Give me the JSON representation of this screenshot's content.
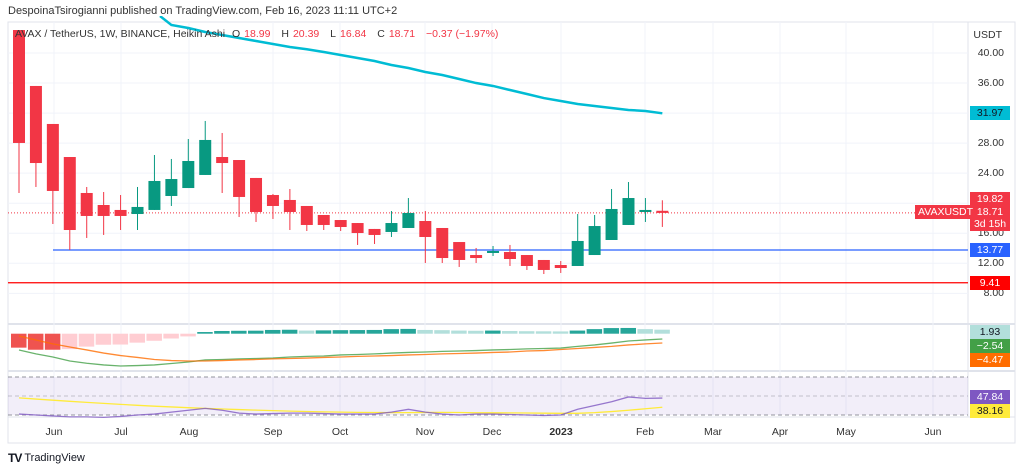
{
  "header": {
    "publish_line": "DespoinaTsirogianni published on TradingView.com, Feb 16, 2023 11:11 UTC+2"
  },
  "legend": {
    "symbol": "AVAX / TetherUS, 1W, BINANCE, Heikin Ashi",
    "open_label": "O",
    "open": "18.99",
    "high_label": "H",
    "high": "20.39",
    "low_label": "L",
    "low": "16.84",
    "close_label": "C",
    "close": "18.71",
    "change": "−0.37 (−1.97%)"
  },
  "price_axis": {
    "unit": "USDT",
    "ticks": [
      "40.00",
      "36.00",
      "28.00",
      "24.00",
      "16.00",
      "12.00",
      "8.00"
    ]
  },
  "price_labels": {
    "ma": {
      "text": "31.97",
      "color": "#00bcd4"
    },
    "high": {
      "text": "19.82",
      "color": "#f23645"
    },
    "last": {
      "text": "18.71",
      "countdown": "3d 15h",
      "color": "#f23645"
    },
    "symbol_tag": "AVAXUSDT",
    "support": {
      "text": "13.77",
      "color": "#2962ff"
    },
    "support2": {
      "text": "9.41",
      "color": "#ff0000"
    }
  },
  "macd_labels": {
    "histogram": {
      "text": "1.93",
      "color": "#b2dfdb"
    },
    "macd": {
      "text": "−2.54",
      "color": "#43a047"
    },
    "signal": {
      "text": "−4.47",
      "color": "#ff6d00"
    }
  },
  "rsi_labels": {
    "rsi": {
      "text": "47.84",
      "color": "#7e57c2"
    },
    "rsi_ma": {
      "text": "38.16",
      "color": "#ffeb3b"
    }
  },
  "time_axis": [
    "Jun",
    "Jul",
    "Aug",
    "Sep",
    "Oct",
    "Nov",
    "Dec",
    "2023",
    "Feb",
    "Mar",
    "Apr",
    "May",
    "Jun"
  ],
  "footer": {
    "brand": "TradingView"
  },
  "colors": {
    "up": "#089981",
    "down": "#f23645",
    "ma": "#00bcd4"
  },
  "chart_data": {
    "type": "candlestick",
    "style": "Heikin Ashi",
    "ylim": [
      7,
      44
    ],
    "grid": true,
    "x_tick_labels": [
      "Jun",
      "Jul",
      "Aug",
      "Sep",
      "Oct",
      "Nov",
      "Dec",
      "2023",
      "Feb",
      "Mar",
      "Apr",
      "May",
      "Jun"
    ],
    "candles_ohlc": [
      [
        43.06,
        43.06,
        21.36,
        28.02
      ],
      [
        35.61,
        35.61,
        22.16,
        25.35
      ],
      [
        30.55,
        30.55,
        17.23,
        21.63
      ],
      [
        26.15,
        26.15,
        13.77,
        16.43
      ],
      [
        21.36,
        22.16,
        15.37,
        18.3
      ],
      [
        19.76,
        21.49,
        15.77,
        18.3
      ],
      [
        19.1,
        21.09,
        16.43,
        18.3
      ],
      [
        18.56,
        22.16,
        16.43,
        19.5
      ],
      [
        19.1,
        26.42,
        19.1,
        22.96
      ],
      [
        20.96,
        25.89,
        19.63,
        23.22
      ],
      [
        22.02,
        28.55,
        22.02,
        25.62
      ],
      [
        23.76,
        30.95,
        23.76,
        28.42
      ],
      [
        26.15,
        29.35,
        21.36,
        25.35
      ],
      [
        25.75,
        25.75,
        18.16,
        20.83
      ],
      [
        23.36,
        23.36,
        17.5,
        18.83
      ],
      [
        21.09,
        21.23,
        17.9,
        19.63
      ],
      [
        20.43,
        21.89,
        16.43,
        18.83
      ],
      [
        19.63,
        19.63,
        16.3,
        17.1
      ],
      [
        18.43,
        18.43,
        16.43,
        17.1
      ],
      [
        17.76,
        17.76,
        16.3,
        16.83
      ],
      [
        17.36,
        17.36,
        14.44,
        16.03
      ],
      [
        16.57,
        16.57,
        14.57,
        15.77
      ],
      [
        16.17,
        18.96,
        15.5,
        17.36
      ],
      [
        16.7,
        20.69,
        16.7,
        18.7
      ],
      [
        17.63,
        18.96,
        12.04,
        15.5
      ],
      [
        16.7,
        16.7,
        12.04,
        12.7
      ],
      [
        14.83,
        14.83,
        11.51,
        12.44
      ],
      [
        13.1,
        14.04,
        12.04,
        12.7
      ],
      [
        13.37,
        14.3,
        12.97,
        13.64
      ],
      [
        13.5,
        14.44,
        11.64,
        12.57
      ],
      [
        13.1,
        13.1,
        11.11,
        11.64
      ],
      [
        12.44,
        12.44,
        10.57,
        11.11
      ],
      [
        11.77,
        12.3,
        10.71,
        11.37
      ],
      [
        11.64,
        18.56,
        11.64,
        14.97
      ],
      [
        13.1,
        18.43,
        13.1,
        16.96
      ],
      [
        15.1,
        21.89,
        15.1,
        19.23
      ],
      [
        17.1,
        22.82,
        17.1,
        20.69
      ],
      [
        18.83,
        20.69,
        17.5,
        19.1
      ],
      [
        18.99,
        20.39,
        16.84,
        18.71
      ]
    ],
    "moving_average": [
      null,
      null,
      null,
      null,
      null,
      null,
      null,
      null,
      null,
      43.73,
      43.33,
      42.8,
      42.4,
      42.0,
      41.6,
      41.2,
      40.8,
      40.5,
      40.13,
      39.73,
      39.33,
      38.93,
      38.4,
      38.0,
      37.47,
      37.07,
      36.54,
      36.0,
      35.61,
      35.07,
      34.54,
      34.0,
      33.61,
      33.21,
      32.94,
      32.68,
      32.41,
      32.28,
      31.97
    ],
    "horizontal_levels": [
      13.77,
      9.41
    ],
    "macd": {
      "histogram": [
        -6.7,
        -7.7,
        -7.7,
        -7.4,
        -6.2,
        -5.3,
        -5.2,
        -4.3,
        -3.4,
        -2.3,
        -1.3,
        0.8,
        1.3,
        1.4,
        1.45,
        1.8,
        1.9,
        1.5,
        1.6,
        1.7,
        1.75,
        1.8,
        2.2,
        2.3,
        1.8,
        1.7,
        1.5,
        1.4,
        1.5,
        1.3,
        1.2,
        1.15,
        1.1,
        1.5,
        2.2,
        2.7,
        2.75,
        2.2,
        1.93
      ],
      "macd": [
        -7.8,
        -9.7,
        -11.2,
        -13.1,
        -14.2,
        -15.0,
        -15.5,
        -15.3,
        -15.0,
        -14.3,
        -13.6,
        -12.6,
        -12.4,
        -12.1,
        -11.9,
        -11.7,
        -11.2,
        -10.9,
        -10.7,
        -10.2,
        -10.0,
        -9.7,
        -9.3,
        -9.0,
        -8.8,
        -8.5,
        -8.3,
        -8.1,
        -7.8,
        -7.6,
        -7.3,
        -7.1,
        -6.9,
        -6.1,
        -5.4,
        -4.5,
        -3.5,
        -3.0,
        -2.54
      ],
      "signal": [
        -1.1,
        -3.0,
        -4.9,
        -6.4,
        -7.8,
        -9.3,
        -10.5,
        -11.4,
        -12.4,
        -12.9,
        -13.1,
        -13.1,
        -12.9,
        -12.6,
        -12.4,
        -12.1,
        -11.9,
        -11.7,
        -11.4,
        -11.2,
        -10.9,
        -10.7,
        -10.5,
        -10.2,
        -10.0,
        -9.7,
        -9.5,
        -9.3,
        -9.0,
        -8.8,
        -8.3,
        -8.1,
        -7.6,
        -7.1,
        -6.6,
        -6.1,
        -5.4,
        -4.9,
        -4.47
      ]
    },
    "rsi": {
      "bands": [
        70,
        50,
        30
      ],
      "rsi": [
        31,
        30,
        29,
        28,
        28,
        27.5,
        28.5,
        30,
        31,
        33,
        35,
        37,
        35,
        32,
        31,
        31.5,
        32,
        32,
        31.5,
        31,
        31,
        31,
        33,
        36,
        33,
        31,
        30,
        31,
        31,
        30.5,
        30,
        29.5,
        30,
        36,
        40,
        44,
        49,
        47.5,
        47.84
      ],
      "rsi_ma": [
        48,
        46.8,
        45.6,
        44.4,
        43.3,
        42.2,
        41.2,
        40.2,
        39.3,
        38.5,
        37.7,
        37,
        36.3,
        35.7,
        35.1,
        34.6,
        34.1,
        33.7,
        33.3,
        33,
        32.8,
        32.6,
        32.5,
        32.5,
        32.7,
        32.8,
        32.6,
        32.4,
        32.3,
        32.2,
        32.1,
        31.9,
        31.8,
        31.8,
        32.5,
        33.6,
        35,
        36.6,
        38.16
      ]
    }
  }
}
